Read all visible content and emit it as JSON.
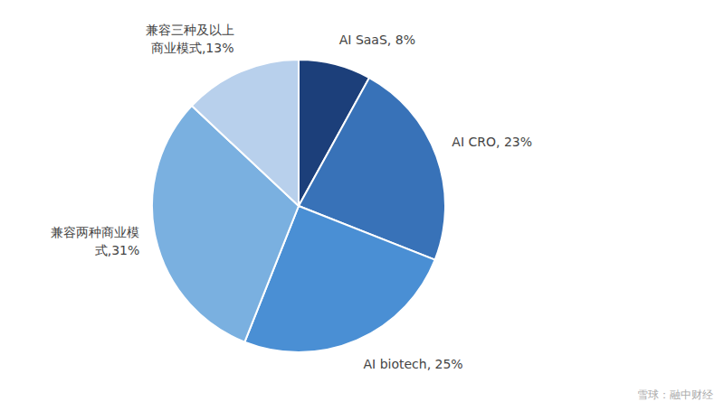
{
  "chart_data": {
    "type": "pie",
    "categories": [
      "AI SaaS, 8%",
      "AI CRO, 23%",
      "AI biotech, 25%",
      "兼容两种商业模\n式,31%",
      "兼容三种及以上\n商业模式,13%"
    ],
    "values": [
      8,
      23,
      25,
      31,
      13
    ],
    "colors": [
      "#1c3f7a",
      "#3872b8",
      "#4a8fd4",
      "#7ab0e0",
      "#b8d0ec"
    ],
    "annotations": [
      "雪球：融中财经"
    ]
  }
}
